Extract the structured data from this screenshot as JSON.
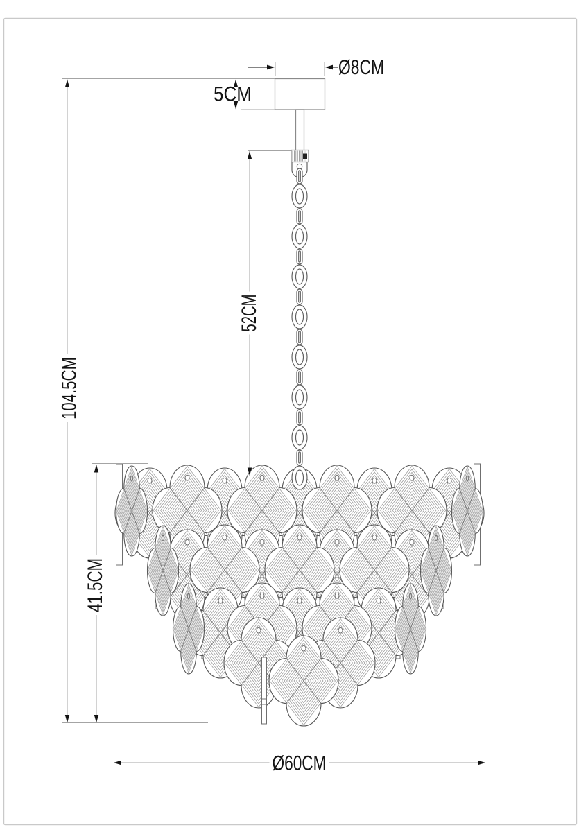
{
  "diagram": {
    "product": "Chandelier technical dimension drawing",
    "view": "front elevation line drawing"
  },
  "dimensions": {
    "canopy_diameter": "Ø8CM",
    "canopy_height": "5CM",
    "chain_length": "52CM",
    "total_height": "104.5CM",
    "body_height": "41.5CM",
    "body_diameter": "Ø60CM"
  },
  "colors": {
    "background": "#ffffff",
    "frame_border": "#c9c9c9",
    "fixture_line": "#8a8a8a",
    "glass_outline": "#555555",
    "hatch_line": "#9a9a9a",
    "dimension_line": "#a4a4a4",
    "dimension_text": "#141414"
  }
}
